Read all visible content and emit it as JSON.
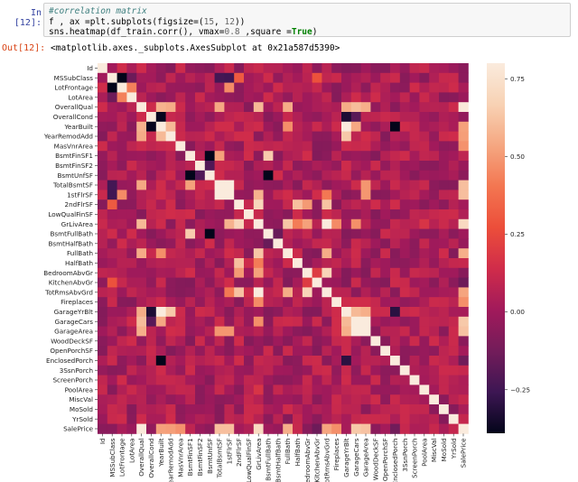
{
  "notebook": {
    "in_prompt": "In [12]:",
    "out_prompt": "Out[12]:",
    "code": {
      "line1": "#correlation matrix",
      "line2_a": "f , ax =plt.subplots(figsize=(",
      "line2_n1": "15",
      "line2_b": ", ",
      "line2_n2": "12",
      "line2_c": "))",
      "line3_a": "sns.heatmap(df_train.corr(), vmax=",
      "line3_n": "0.8",
      "line3_b": " ,square =",
      "line3_kw": "True",
      "line3_c": ")"
    },
    "output_text": "<matplotlib.axes._subplots.AxesSubplot at 0x21a587d5390>"
  },
  "chart_data": {
    "type": "heatmap",
    "title": "",
    "variables": [
      "Id",
      "MSSubClass",
      "LotFrontage",
      "LotArea",
      "OverallQual",
      "OverallCond",
      "YearBuilt",
      "YearRemodAdd",
      "MasVnrArea",
      "BsmtFinSF1",
      "BsmtFinSF2",
      "BsmtUnfSF",
      "TotalBsmtSF",
      "1stFlrSF",
      "2ndFlrSF",
      "LowQualFinSF",
      "GrLivArea",
      "BsmtFullBath",
      "BsmtHalfBath",
      "FullBath",
      "HalfBath",
      "BedroomAbvGr",
      "KitchenAbvGr",
      "TotRmsAbvGrd",
      "Fireplaces",
      "GarageYrBlt",
      "GarageCars",
      "GarageArea",
      "WoodDeckSF",
      "OpenPorchSF",
      "EnclosedPorch",
      "3SsnPorch",
      "ScreenPorch",
      "PoolArea",
      "MiscVal",
      "MoSold",
      "YrSold",
      "SalePrice"
    ],
    "vmin": -0.39,
    "vmax": 0.8,
    "colorbar_ticks": [
      0.75,
      0.5,
      0.25,
      0.0,
      -0.25
    ],
    "colorbar_tick_labels": [
      "0.75",
      "0.50",
      "0.25",
      "0.00",
      "−0.25"
    ],
    "colormap_stops": [
      "#03051a",
      "#3d1653",
      "#731c5a",
      "#a11a5b",
      "#d02c4a",
      "#ec4e3a",
      "#f37651",
      "#f5a781",
      "#f8d2b4",
      "#faebdd"
    ],
    "strong_correlations": [
      {
        "row": "GarageCars",
        "col": "GarageArea",
        "value": 0.88
      },
      {
        "row": "YearBuilt",
        "col": "GarageYrBlt",
        "value": 0.83
      },
      {
        "row": "GrLivArea",
        "col": "TotRmsAbvGrd",
        "value": 0.83
      },
      {
        "row": "TotalBsmtSF",
        "col": "1stFlrSF",
        "value": 0.82
      },
      {
        "row": "OverallQual",
        "col": "SalePrice",
        "value": 0.79
      },
      {
        "row": "GrLivArea",
        "col": "SalePrice",
        "value": 0.71
      },
      {
        "row": "2ndFlrSF",
        "col": "GrLivArea",
        "value": 0.69
      },
      {
        "row": "BedroomAbvGr",
        "col": "TotRmsAbvGrd",
        "value": 0.68
      },
      {
        "row": "BsmtFinSF1",
        "col": "BsmtFullBath",
        "value": 0.65
      },
      {
        "row": "YearRemodAdd",
        "col": "GarageYrBlt",
        "value": 0.64
      },
      {
        "row": "GarageCars",
        "col": "SalePrice",
        "value": 0.64
      },
      {
        "row": "GarageArea",
        "col": "SalePrice",
        "value": 0.62
      },
      {
        "row": "TotalBsmtSF",
        "col": "SalePrice",
        "value": 0.61
      },
      {
        "row": "1stFlrSF",
        "col": "SalePrice",
        "value": 0.61
      },
      {
        "row": "2ndFlrSF",
        "col": "HalfBath",
        "value": 0.61
      },
      {
        "row": "OverallQual",
        "col": "GarageCars",
        "value": 0.6
      },
      {
        "row": "GrLivArea",
        "col": "FullBath",
        "value": 0.63
      },
      {
        "row": "YearBuilt",
        "col": "YearRemodAdd",
        "value": 0.59
      },
      {
        "row": "2ndFlrSF",
        "col": "TotRmsAbvGrd",
        "value": 0.62
      },
      {
        "row": "OverallQual",
        "col": "GrLivArea",
        "value": 0.59
      },
      {
        "row": "YearBuilt",
        "col": "OverallQual",
        "value": 0.57
      },
      {
        "row": "OverallQual",
        "col": "YearRemodAdd",
        "value": 0.55
      },
      {
        "row": "FullBath",
        "col": "SalePrice",
        "value": 0.56
      },
      {
        "row": "FullBath",
        "col": "TotRmsAbvGrd",
        "value": 0.55
      },
      {
        "row": "YearBuilt",
        "col": "GarageCars",
        "value": 0.54
      },
      {
        "row": "GarageYrBlt",
        "col": "GarageCars",
        "value": 0.59
      },
      {
        "row": "OverallQual",
        "col": "GarageArea",
        "value": 0.56
      },
      {
        "row": "OverallQual",
        "col": "TotalBsmtSF",
        "value": 0.54
      },
      {
        "row": "TotRmsAbvGrd",
        "col": "SalePrice",
        "value": 0.53
      },
      {
        "row": "YearBuilt",
        "col": "SalePrice",
        "value": 0.52
      },
      {
        "row": "YearRemodAdd",
        "col": "SalePrice",
        "value": 0.51
      },
      {
        "row": "GarageYrBlt",
        "col": "GarageArea",
        "value": 0.56
      },
      {
        "row": "BsmtFinSF1",
        "col": "TotalBsmtSF",
        "value": 0.52
      },
      {
        "row": "OverallQual",
        "col": "FullBath",
        "value": 0.55
      },
      {
        "row": "1stFlrSF",
        "col": "GrLivArea",
        "value": 0.57
      },
      {
        "row": "GrLivArea",
        "col": "HalfBath",
        "value": 0.42
      },
      {
        "row": "GrLivArea",
        "col": "BedroomAbvGr",
        "value": 0.52
      },
      {
        "row": "2ndFlrSF",
        "col": "BedroomAbvGr",
        "value": 0.5
      },
      {
        "row": "OverallQual",
        "col": "GarageYrBlt",
        "value": 0.55
      },
      {
        "row": "YearBuilt",
        "col": "FullBath",
        "value": 0.47
      },
      {
        "row": "Fireplaces",
        "col": "SalePrice",
        "value": 0.47
      },
      {
        "row": "MasVnrArea",
        "col": "SalePrice",
        "value": 0.48
      },
      {
        "row": "GrLivArea",
        "col": "GarageCars",
        "value": 0.47
      },
      {
        "row": "GrLivArea",
        "col": "Fireplaces",
        "value": 0.46
      },
      {
        "row": "1stFlrSF",
        "col": "TotRmsAbvGrd",
        "value": 0.41
      },
      {
        "row": "1stFlrSF",
        "col": "GarageArea",
        "value": 0.49
      },
      {
        "row": "TotalBsmtSF",
        "col": "GarageArea",
        "value": 0.49
      },
      {
        "row": "LotFrontage",
        "col": "LotArea",
        "value": 0.43
      },
      {
        "row": "LotFrontage",
        "col": "1stFlrSF",
        "value": 0.46
      },
      {
        "row": "MSSubClass",
        "col": "2ndFlrSF",
        "value": 0.31
      },
      {
        "row": "BsmtFinSF1",
        "col": "BsmtUnfSF",
        "value": -0.5
      },
      {
        "row": "BsmtUnfSF",
        "col": "BsmtFullBath",
        "value": -0.42
      },
      {
        "row": "YearBuilt",
        "col": "OverallCond",
        "value": -0.38
      },
      {
        "row": "OverallCond",
        "col": "YearBuilt",
        "value": -0.38
      },
      {
        "row": "YearBuilt",
        "col": "EnclosedPorch",
        "value": -0.39
      },
      {
        "row": "MSSubClass",
        "col": "LotFrontage",
        "value": -0.39
      },
      {
        "row": "GarageYrBlt",
        "col": "EnclosedPorch",
        "value": -0.3
      },
      {
        "row": "OverallCond",
        "col": "GarageYrBlt",
        "value": -0.33
      },
      {
        "row": "BsmtFinSF2",
        "col": "BsmtUnfSF",
        "value": -0.21
      },
      {
        "row": "MSSubClass",
        "col": "1stFlrSF",
        "value": -0.25
      },
      {
        "row": "MSSubClass",
        "col": "TotalBsmtSF",
        "value": -0.24
      },
      {
        "row": "MSSubClass",
        "col": "LotArea",
        "value": -0.14
      },
      {
        "row": "BsmtFullBath",
        "col": "BsmtHalfBath",
        "value": -0.15
      },
      {
        "row": "KitchenAbvGr",
        "col": "SalePrice",
        "value": -0.14
      },
      {
        "row": "EnclosedPorch",
        "col": "SalePrice",
        "value": -0.13
      },
      {
        "row": "OverallCond",
        "col": "GarageCars",
        "value": -0.19
      },
      {
        "row": "MSSubClass",
        "col": "KitchenAbvGr",
        "value": 0.28
      },
      {
        "row": "KitchenAbvGr",
        "col": "BedroomAbvGr",
        "value": 0.2
      },
      {
        "row": "PoolArea",
        "col": "GrLivArea",
        "value": 0.17
      }
    ]
  }
}
